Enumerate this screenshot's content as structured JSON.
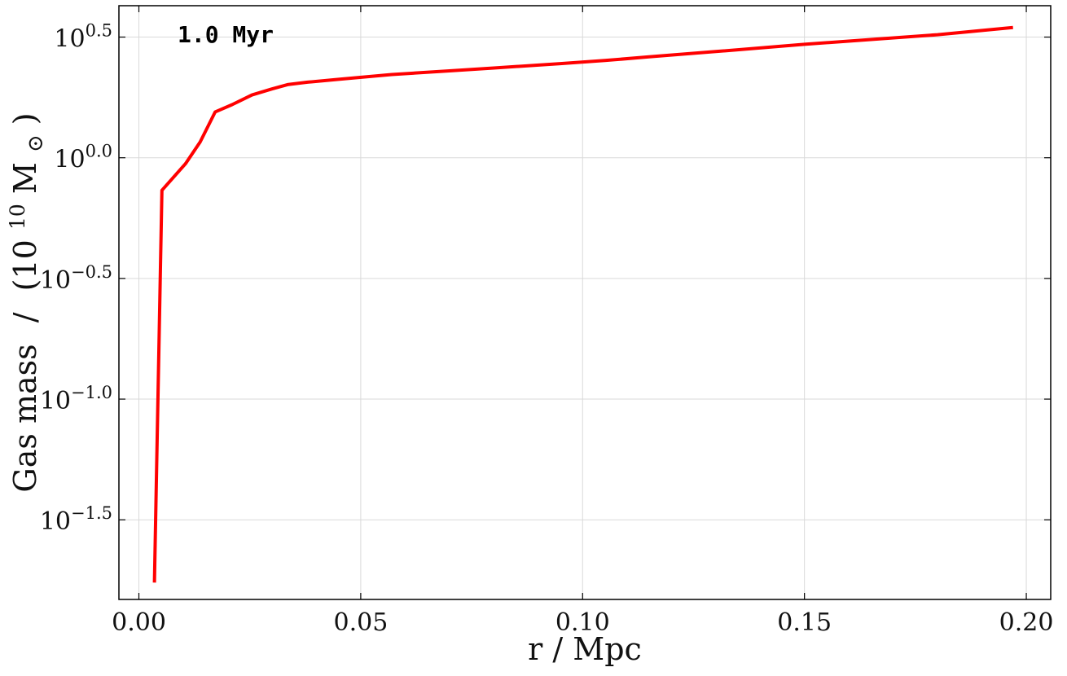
{
  "chart_data": {
    "type": "line",
    "title": "",
    "annotation": "1.0 Myr",
    "xlabel": "r / Mpc",
    "ylabel_main": "Gas mass",
    "ylabel_sep": "/",
    "ylabel_unit_open": "(10",
    "ylabel_unit_exp": "10",
    "ylabel_unit_close": " M",
    "ylabel_unit_symbol": "⊙",
    "ylabel_unit_end": ")",
    "x_scale": "linear",
    "y_scale": "log10",
    "xlim": [
      -0.0045,
      0.2055
    ],
    "ylim_log10": [
      -1.83,
      0.63
    ],
    "x_ticks": [
      0.0,
      0.05,
      0.1,
      0.15,
      0.2
    ],
    "x_tick_labels": [
      "0.00",
      "0.05",
      "0.10",
      "0.15",
      "0.20"
    ],
    "y_ticks_log10": [
      -1.5,
      -1.0,
      -0.5,
      0.0,
      0.5
    ],
    "y_tick_base": "10",
    "y_tick_exponents": [
      "−1.5",
      "−1.0",
      "−0.5",
      "0.0",
      "0.5"
    ],
    "grid": true,
    "series": [
      {
        "color": "#ff0000",
        "x": [
          0.0035,
          0.0052,
          0.0105,
          0.0138,
          0.0172,
          0.021,
          0.0255,
          0.03,
          0.0335,
          0.038,
          0.045,
          0.057,
          0.07,
          0.08,
          0.095,
          0.105,
          0.115,
          0.13,
          0.15,
          0.165,
          0.18,
          0.197
        ],
        "log10_y": [
          -1.76,
          -0.135,
          -0.025,
          0.065,
          0.19,
          0.22,
          0.26,
          0.285,
          0.303,
          0.313,
          0.325,
          0.345,
          0.36,
          0.372,
          0.39,
          0.403,
          0.418,
          0.44,
          0.47,
          0.49,
          0.51,
          0.54
        ]
      }
    ]
  }
}
